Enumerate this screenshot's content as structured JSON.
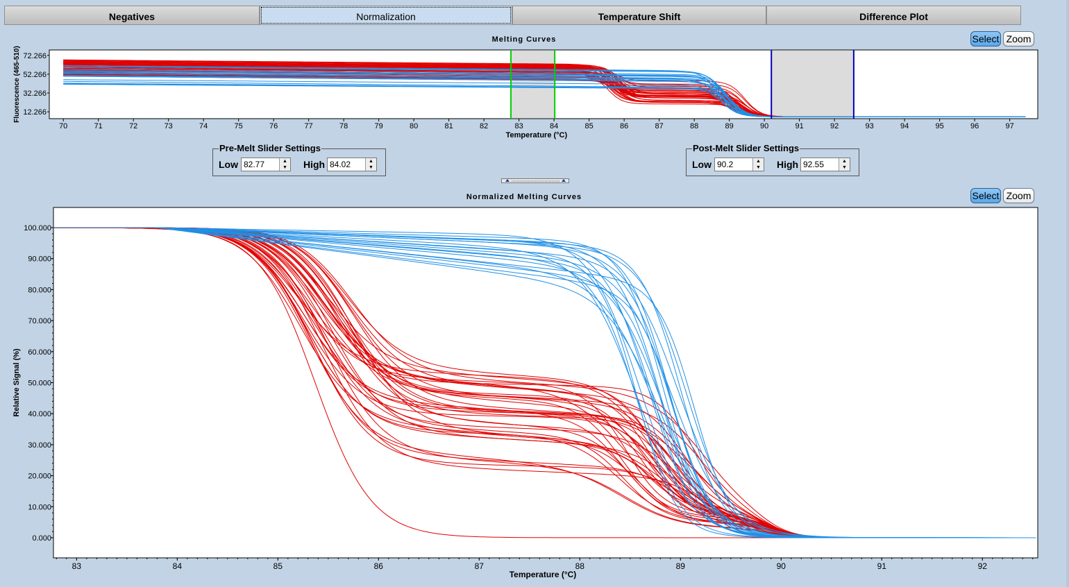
{
  "tabs": [
    {
      "label": "Negatives",
      "active": false
    },
    {
      "label": "Normalization",
      "active": true
    },
    {
      "label": "Temperature Shift",
      "active": false
    },
    {
      "label": "Difference Plot",
      "active": false
    }
  ],
  "top_panel": {
    "title": "Melting Curves",
    "select_label": "Select",
    "zoom_label": "Zoom"
  },
  "pre_melt": {
    "title": "Pre-Melt Slider Settings",
    "low_label": "Low",
    "low_value": "82.77",
    "high_label": "High",
    "high_value": "84.02"
  },
  "post_melt": {
    "title": "Post-Melt Slider Settings",
    "low_label": "Low",
    "low_value": "90.2",
    "high_label": "High",
    "high_value": "92.55"
  },
  "bottom_panel": {
    "title": "Normalized Melting Curves",
    "select_label": "Select",
    "zoom_label": "Zoom"
  },
  "colors": {
    "red_series": "#e00000",
    "blue_series": "#1f8fe6",
    "premelt_slider": "#00d000",
    "postmelt_slider": "#0000c0",
    "select_active": "#5aa8ea"
  },
  "chart_data": [
    {
      "type": "line",
      "title": "Melting Curves",
      "xlabel": "Temperature (°C)",
      "ylabel": "Fluorescence (465-510)",
      "xlim": [
        69.6,
        97.8
      ],
      "ylim": [
        5,
        78
      ],
      "xticks": [
        70,
        71,
        72,
        73,
        74,
        75,
        76,
        77,
        78,
        79,
        80,
        81,
        82,
        83,
        84,
        85,
        86,
        87,
        88,
        89,
        90,
        91,
        92,
        93,
        94,
        95,
        96,
        97
      ],
      "yticks": [
        "72.266",
        "52.266",
        "32.266",
        "12.266"
      ],
      "ytick_values": [
        72.266,
        52.266,
        32.266,
        12.266
      ],
      "premelt_range": [
        82.77,
        84.02
      ],
      "postmelt_range": [
        90.2,
        92.55
      ],
      "series": [
        {
          "color": "red",
          "count": 40,
          "pattern": "high baseline drifting down slowly, first melt near 85.6, plateau, second melt near 89.3, ends at 7"
        },
        {
          "color": "blue",
          "count": 18,
          "pattern": "baseline drifting down, single melt near 89.0, ends at 7"
        }
      ]
    },
    {
      "type": "line",
      "title": "Normalized Melting Curves",
      "xlabel": "Temperature (°C)",
      "ylabel": "Relative Signal (%)",
      "xlim": [
        82.77,
        92.55
      ],
      "ylim": [
        -6.5,
        106.5
      ],
      "xticks": [
        83,
        84,
        85,
        86,
        87,
        88,
        89,
        90,
        91,
        92
      ],
      "yticks": [
        "100.000",
        "90.000",
        "80.000",
        "70.000",
        "60.000",
        "50.000",
        "40.000",
        "30.000",
        "20.000",
        "10.000",
        "0.000"
      ],
      "ytick_values": [
        100,
        90,
        80,
        70,
        60,
        50,
        40,
        30,
        20,
        10,
        0
      ],
      "series": [
        {
          "color": "red",
          "count": 40,
          "plateau_range": [
            0,
            52
          ],
          "first_melt": 85.4,
          "second_melt": 88.8,
          "end_value": 0
        },
        {
          "color": "blue",
          "count": 20,
          "plateau_range": [
            83,
            100
          ],
          "melt": 88.9,
          "end_value": 0
        }
      ]
    }
  ]
}
